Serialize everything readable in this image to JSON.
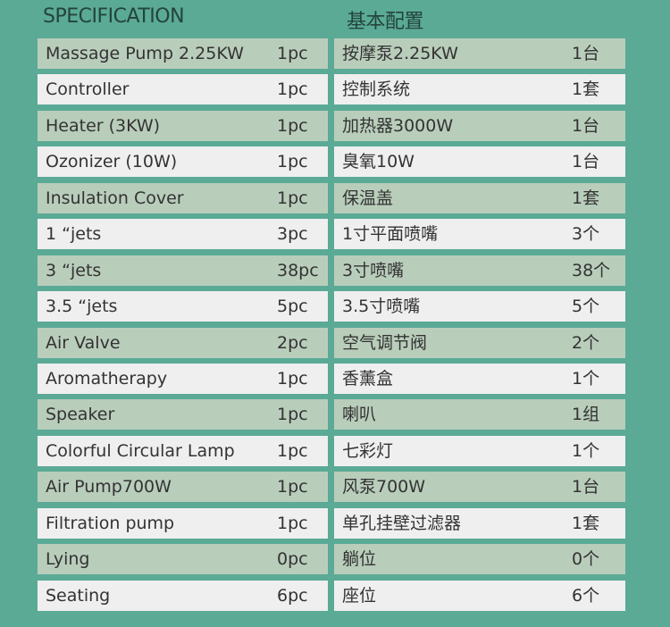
{
  "header": {
    "en": "SPECIFICATION",
    "cn": "基本配置"
  },
  "colors": {
    "background": "#5aaa96",
    "row_green": "#b9cdbb",
    "row_white": "#efefef"
  },
  "rows": [
    {
      "en": "Massage Pump 2.25KW",
      "en_qty": "1pc",
      "cn": "按摩泵2.25KW",
      "cn_qty": "1台"
    },
    {
      "en": "Controller",
      "en_qty": "1pc",
      "cn": "控制系统",
      "cn_qty": "1套"
    },
    {
      "en": "Heater (3KW)",
      "en_qty": "1pc",
      "cn": "加热器3000W",
      "cn_qty": "1台"
    },
    {
      "en": "Ozonizer (10W)",
      "en_qty": "1pc",
      "cn": "臭氧10W",
      "cn_qty": "1台"
    },
    {
      "en": "Insulation Cover",
      "en_qty": "1pc",
      "cn": "保温盖",
      "cn_qty": "1套"
    },
    {
      "en": "1 “jets",
      "en_qty": "3pc",
      "cn": "1寸平面喷嘴",
      "cn_qty": "3个"
    },
    {
      "en": "3 “jets",
      "en_qty": "38pc",
      "cn": "3寸喷嘴",
      "cn_qty": "38个"
    },
    {
      "en": "3.5 “jets",
      "en_qty": "5pc",
      "cn": "3.5寸喷嘴",
      "cn_qty": "5个"
    },
    {
      "en": "Air Valve",
      "en_qty": "2pc",
      "cn": "空气调节阀",
      "cn_qty": "2个"
    },
    {
      "en": "Aromatherapy",
      "en_qty": "1pc",
      "cn": "香薰盒",
      "cn_qty": "1个"
    },
    {
      "en": "Speaker",
      "en_qty": "1pc",
      "cn": "喇叭",
      "cn_qty": "1组"
    },
    {
      "en": "Colorful Circular Lamp",
      "en_qty": "1pc",
      "cn": "七彩灯",
      "cn_qty": "1个"
    },
    {
      "en": "Air Pump700W",
      "en_qty": "1pc",
      "cn": "风泵700W",
      "cn_qty": "1台"
    },
    {
      "en": "Filtration pump",
      "en_qty": "1pc",
      "cn": "单孔挂壁过滤器",
      "cn_qty": "1套"
    },
    {
      "en": "Lying",
      "en_qty": "0pc",
      "cn": "躺位",
      "cn_qty": "0个"
    },
    {
      "en": "Seating",
      "en_qty": "6pc",
      "cn": "座位",
      "cn_qty": "6个"
    }
  ]
}
